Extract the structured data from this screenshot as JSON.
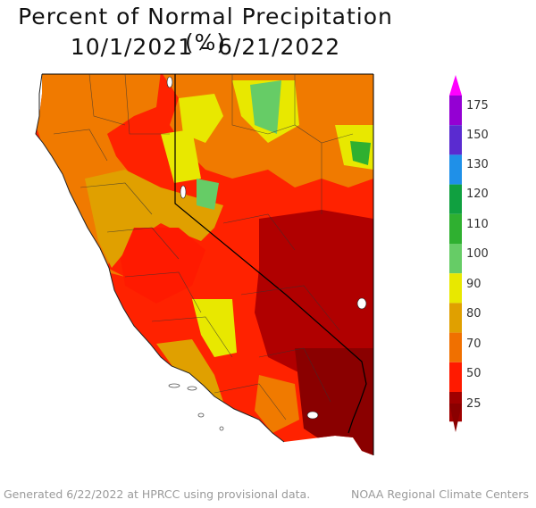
{
  "title": "Percent of Normal Precipitation (%)",
  "subtitle": "10/1/2021 - 6/21/2022",
  "footer_left": "Generated 6/22/2022 at HPRCC using provisional data.",
  "footer_right": "NOAA Regional Climate Centers",
  "legend": {
    "labels": [
      "175",
      "150",
      "130",
      "120",
      "110",
      "100",
      "90",
      "80",
      "70",
      "50",
      "25"
    ],
    "bands": [
      {
        "range": "150-175",
        "color": "#9400d3"
      },
      {
        "range": "130-150",
        "color": "#5a2bd0"
      },
      {
        "range": "120-130",
        "color": "#1f90e8"
      },
      {
        "range": "110-120",
        "color": "#10a040"
      },
      {
        "range": "100-110",
        "color": "#2fb030"
      },
      {
        "range": "90-100",
        "color": "#66cc66"
      },
      {
        "range": "80-90",
        "color": "#e8e800"
      },
      {
        "range": "70-80",
        "color": "#e0a000"
      },
      {
        "range": "50-70",
        "color": "#f07000"
      },
      {
        "range": "25-50",
        "color": "#ff1a00"
      },
      {
        "range": "0-25",
        "color": "#a00000"
      }
    ],
    "top_color": "#ff00ff"
  }
}
